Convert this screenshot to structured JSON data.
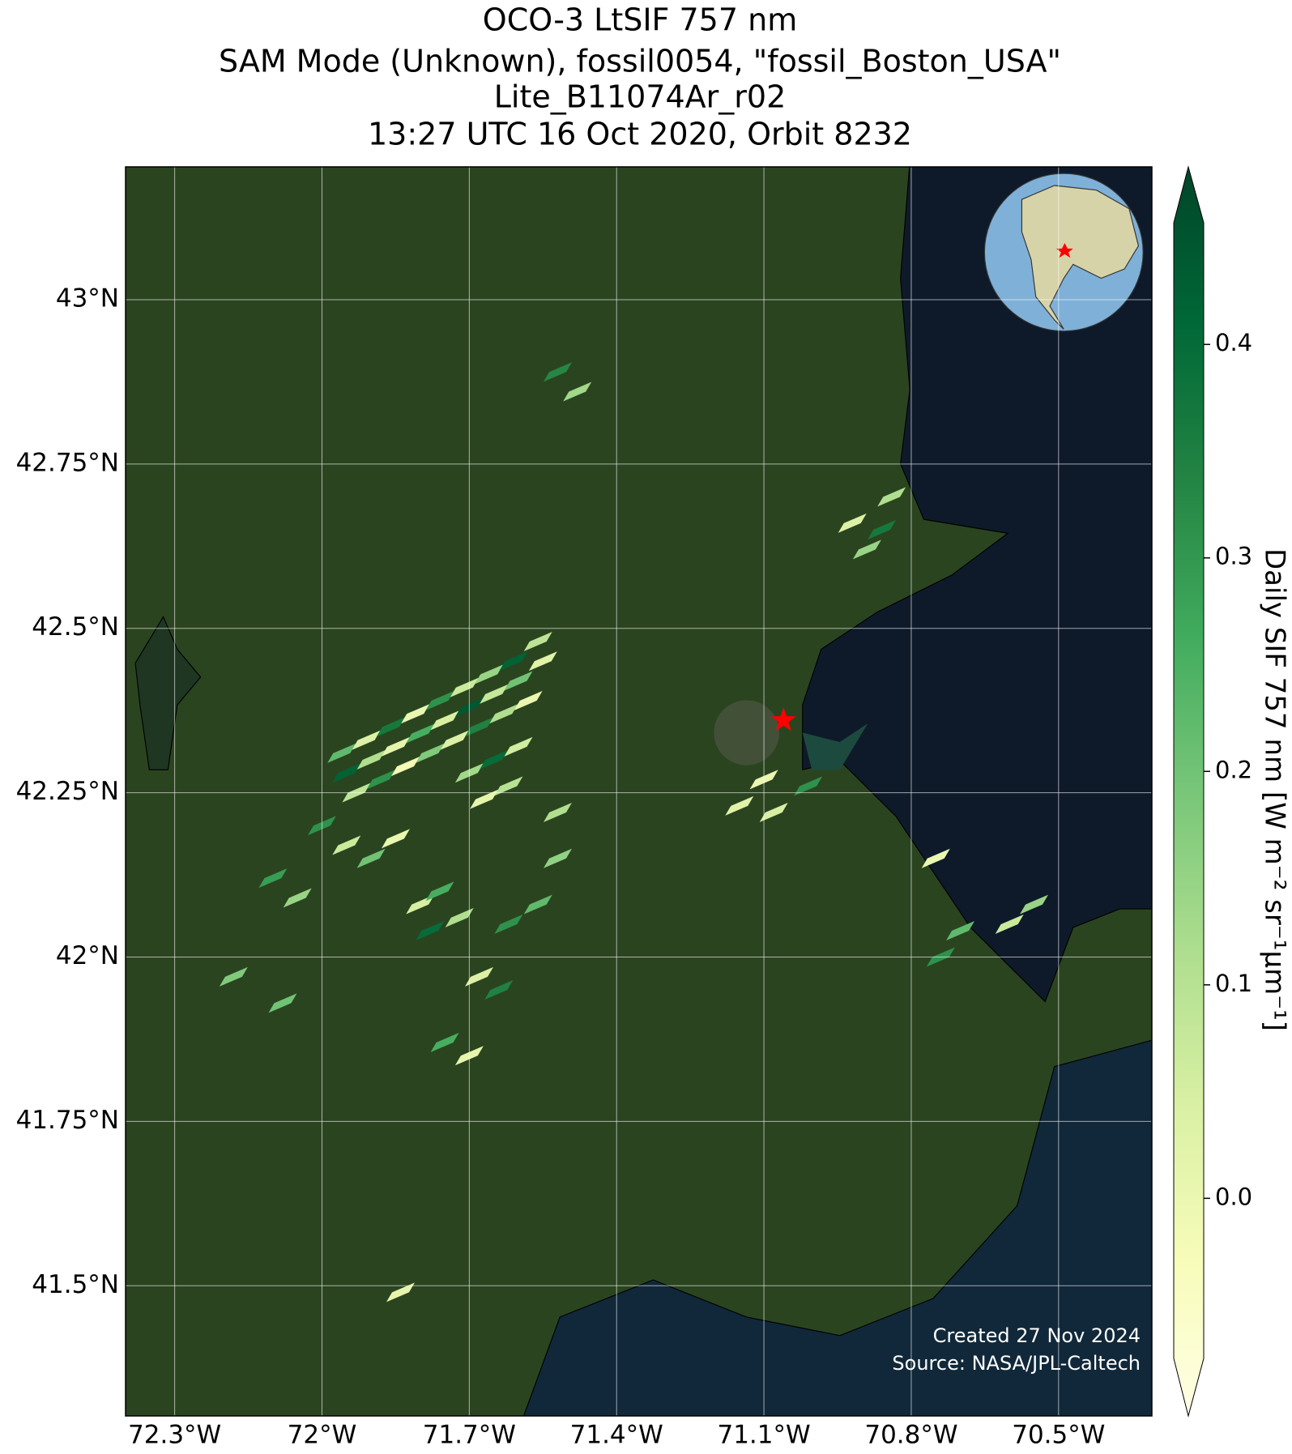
{
  "chart_data": {
    "type": "map",
    "title": [
      "OCO-3 LtSIF 757 nm",
      "SAM Mode (Unknown), fossil0054, \"fossil_Boston_USA\"",
      "Lite_B11074Ar_r02",
      "13:27 UTC 16 Oct 2020, Orbit 8232"
    ],
    "xlim": [
      -72.4,
      -70.31
    ],
    "ylim": [
      41.302,
      43.202
    ],
    "xticks": [
      {
        "value": -72.3,
        "label": "72.3°W"
      },
      {
        "value": -72.0,
        "label": "72°W"
      },
      {
        "value": -71.7,
        "label": "71.7°W"
      },
      {
        "value": -71.4,
        "label": "71.4°W"
      },
      {
        "value": -71.1,
        "label": "71.1°W"
      },
      {
        "value": -70.8,
        "label": "70.8°W"
      },
      {
        "value": -70.5,
        "label": "70.5°W"
      }
    ],
    "yticks": [
      {
        "value": 43.0,
        "label": "43°N"
      },
      {
        "value": 42.75,
        "label": "42.75°N"
      },
      {
        "value": 42.5,
        "label": "42.5°N"
      },
      {
        "value": 42.25,
        "label": "42.25°N"
      },
      {
        "value": 42.0,
        "label": "42°N"
      },
      {
        "value": 41.75,
        "label": "41.75°N"
      },
      {
        "value": 41.5,
        "label": "41.5°N"
      }
    ],
    "grid": true,
    "colorbar": {
      "label": "Daily SIF 757 nm [W m⁻² sr⁻¹μm⁻¹]",
      "colormap": "YlGn",
      "lim": [
        -0.075,
        0.457
      ],
      "ticks": [
        {
          "value": 0,
          "label": "0.0"
        },
        0.1,
        0.2,
        0.3,
        0.4
      ]
    },
    "target": {
      "lon": -71.06,
      "lat": 42.36,
      "color": "#ff0000"
    },
    "annotations": [
      "Created 27 Nov 2024",
      "Source: NASA/JPL-Caltech"
    ],
    "soundings": {
      "lon": [
        -71.96,
        -71.91,
        -71.86,
        -71.81,
        -71.76,
        -71.71,
        -71.66,
        -71.61,
        -71.56,
        -71.95,
        -71.9,
        -71.85,
        -71.8,
        -71.75,
        -71.7,
        -71.65,
        -71.6,
        -71.55,
        -71.93,
        -71.88,
        -71.83,
        -71.78,
        -71.73,
        -71.68,
        -71.63,
        -71.58,
        -71.7,
        -71.65,
        -71.6,
        -71.62,
        -71.67,
        -72.0,
        -71.95,
        -71.9,
        -71.85,
        -72.1,
        -72.05,
        -71.8,
        -71.76,
        -71.72,
        -71.78,
        -71.62,
        -71.56,
        -71.52,
        -71.52,
        -71.68,
        -71.64,
        -72.18,
        -72.08,
        -71.75,
        -71.7,
        -71.84,
        -71.52,
        -71.48,
        -70.92,
        -70.86,
        -70.89,
        -70.84,
        -71.15,
        -71.1,
        -71.08,
        -71.01,
        -70.75,
        -70.7,
        -70.74,
        -70.6,
        -70.55
      ],
      "lat": [
        42.31,
        42.33,
        42.35,
        42.37,
        42.39,
        42.41,
        42.43,
        42.45,
        42.48,
        42.28,
        42.3,
        42.32,
        42.34,
        42.36,
        42.38,
        42.4,
        42.42,
        42.45,
        42.25,
        42.27,
        42.29,
        42.31,
        42.33,
        42.35,
        42.37,
        42.39,
        42.28,
        42.3,
        42.32,
        42.26,
        42.24,
        42.2,
        42.17,
        42.15,
        42.18,
        42.12,
        42.09,
        42.08,
        42.1,
        42.06,
        42.04,
        42.05,
        42.08,
        42.15,
        42.22,
        41.97,
        41.95,
        41.97,
        41.93,
        41.87,
        41.85,
        41.49,
        42.89,
        42.86,
        42.66,
        42.65,
        42.62,
        42.7,
        42.23,
        42.27,
        42.22,
        42.26,
        42.15,
        42.04,
        42.0,
        42.05,
        42.08
      ],
      "values": [
        0.22,
        0.05,
        0.35,
        0.02,
        0.3,
        0.08,
        0.15,
        0.4,
        0.1,
        0.4,
        0.12,
        0.03,
        0.25,
        0.06,
        0.42,
        0.09,
        0.2,
        0.04,
        0.1,
        0.3,
        0.0,
        0.18,
        0.05,
        0.33,
        0.12,
        0.02,
        0.14,
        0.38,
        0.07,
        0.11,
        0.03,
        0.3,
        0.08,
        0.2,
        0.02,
        0.28,
        0.15,
        0.06,
        0.25,
        0.12,
        0.38,
        0.3,
        0.22,
        0.16,
        0.12,
        0.05,
        0.33,
        0.18,
        0.2,
        0.25,
        0.03,
        0.03,
        0.32,
        0.14,
        0.05,
        0.35,
        0.15,
        0.12,
        0.04,
        0.02,
        0.06,
        0.3,
        0.02,
        0.22,
        0.3,
        0.08,
        0.15
      ]
    }
  }
}
